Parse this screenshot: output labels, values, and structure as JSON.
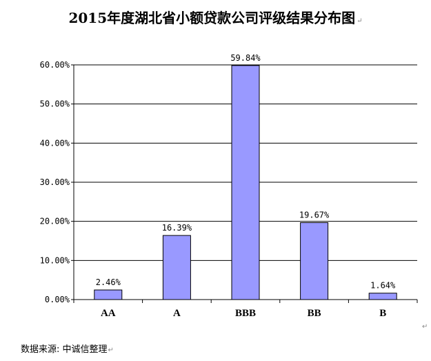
{
  "chart_data": {
    "type": "bar",
    "title": "2015年度湖北省小额贷款公司评级结果分布图",
    "categories": [
      "AA",
      "A",
      "BBB",
      "BB",
      "B"
    ],
    "values": [
      2.46,
      16.39,
      59.84,
      19.67,
      1.64
    ],
    "value_labels": [
      "2.46%",
      "16.39%",
      "59.84%",
      "19.67%",
      "1.64%"
    ],
    "yticks": [
      "0.00%",
      "10.00%",
      "20.00%",
      "30.00%",
      "40.00%",
      "50.00%",
      "60.00%"
    ],
    "ylim": [
      0,
      60
    ],
    "xlabel": "",
    "ylabel": "",
    "grid": true,
    "legend": "none",
    "bar_color": "#9999ff",
    "bar_border_color": "#000000"
  },
  "footer": {
    "source": "数据来源: 中诚信整理"
  }
}
